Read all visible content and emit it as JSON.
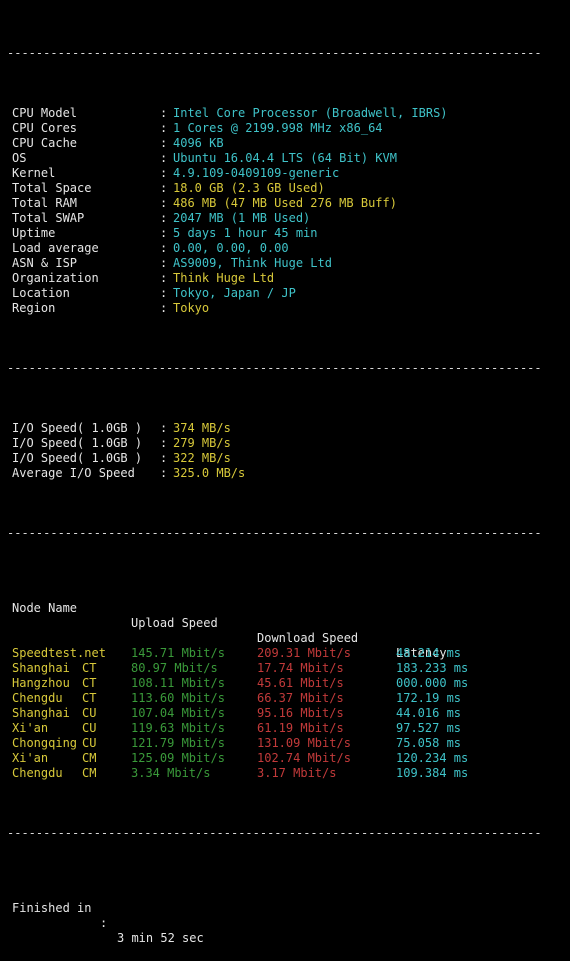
{
  "separator": "--------------------------------------------------------------------------",
  "colon": ":",
  "system_info": [
    {
      "label": "CPU Model",
      "value": "Intel Core Processor (Broadwell, IBRS)",
      "color": "cyan"
    },
    {
      "label": "CPU Cores",
      "value": "1 Cores @ 2199.998 MHz x86_64",
      "color": "cyan"
    },
    {
      "label": "CPU Cache",
      "value": "4096 KB",
      "color": "cyan"
    },
    {
      "label": "OS",
      "value": "Ubuntu 16.04.4 LTS (64 Bit) KVM",
      "color": "cyan"
    },
    {
      "label": "Kernel",
      "value": "4.9.109-0409109-generic",
      "color": "cyan"
    },
    {
      "label": "Total Space",
      "value": "18.0 GB (2.3 GB Used)",
      "color": "yellow"
    },
    {
      "label": "Total RAM",
      "value": "486 MB (47 MB Used 276 MB Buff)",
      "color": "yellow"
    },
    {
      "label": "Total SWAP",
      "value": "2047 MB (1 MB Used)",
      "color": "cyan"
    },
    {
      "label": "Uptime",
      "value": "5 days 1 hour 45 min",
      "color": "cyan"
    },
    {
      "label": "Load average",
      "value": "0.00, 0.00, 0.00",
      "color": "cyan"
    },
    {
      "label": "ASN & ISP",
      "value": "AS9009, Think Huge Ltd",
      "color": "cyan"
    },
    {
      "label": "Organization",
      "value": "Think Huge Ltd",
      "color": "yellow"
    },
    {
      "label": "Location",
      "value": "Tokyo, Japan / JP",
      "color": "cyan"
    },
    {
      "label": "Region",
      "value": "Tokyo",
      "color": "yellow"
    }
  ],
  "io": [
    {
      "label": "I/O Speed( 1.0GB )",
      "value": "374 MB/s"
    },
    {
      "label": "I/O Speed( 1.0GB )",
      "value": "279 MB/s"
    },
    {
      "label": "I/O Speed( 1.0GB )",
      "value": "322 MB/s"
    },
    {
      "label": "Average I/O Speed",
      "value": "325.0 MB/s"
    }
  ],
  "speedtest": {
    "headers": {
      "node": "Node Name",
      "upload": "Upload Speed",
      "download": "Download Speed",
      "latency": "Latency"
    },
    "rows": [
      {
        "name": "Speedtest.net",
        "isp": "",
        "upload": "145.71 Mbit/s",
        "download": "209.31 Mbit/s",
        "latency": "48.214 ms"
      },
      {
        "name": "Shanghai",
        "isp": "CT",
        "upload": "80.97 Mbit/s",
        "download": "17.74 Mbit/s",
        "latency": "183.233 ms"
      },
      {
        "name": "Hangzhou",
        "isp": "CT",
        "upload": "108.11 Mbit/s",
        "download": "45.61 Mbit/s",
        "latency": "000.000 ms"
      },
      {
        "name": "Chengdu",
        "isp": "CT",
        "upload": "113.60 Mbit/s",
        "download": "66.37 Mbit/s",
        "latency": "172.19 ms"
      },
      {
        "name": "Shanghai",
        "isp": "CU",
        "upload": "107.04 Mbit/s",
        "download": "95.16 Mbit/s",
        "latency": "44.016 ms"
      },
      {
        "name": "Xi'an",
        "isp": "CU",
        "upload": "119.63 Mbit/s",
        "download": "61.19 Mbit/s",
        "latency": "97.527 ms"
      },
      {
        "name": "Chongqing",
        "isp": "CU",
        "upload": "121.79 Mbit/s",
        "download": "131.09 Mbit/s",
        "latency": "75.058 ms"
      },
      {
        "name": "Xi'an",
        "isp": "CM",
        "upload": "125.09 Mbit/s",
        "download": "102.74 Mbit/s",
        "latency": "120.234 ms"
      },
      {
        "name": "Chengdu",
        "isp": "CM",
        "upload": "3.34 Mbit/s",
        "download": "3.17 Mbit/s",
        "latency": "109.384 ms"
      }
    ]
  },
  "footer": {
    "label": "Finished in",
    "value": "3 min 52 sec"
  },
  "colors": {
    "background": "#000000",
    "text": "#e6e6e6",
    "cyan": "#3fc3c9",
    "yellow": "#d8c93a",
    "green": "#3a9a3a",
    "red": "#c23a3a"
  }
}
